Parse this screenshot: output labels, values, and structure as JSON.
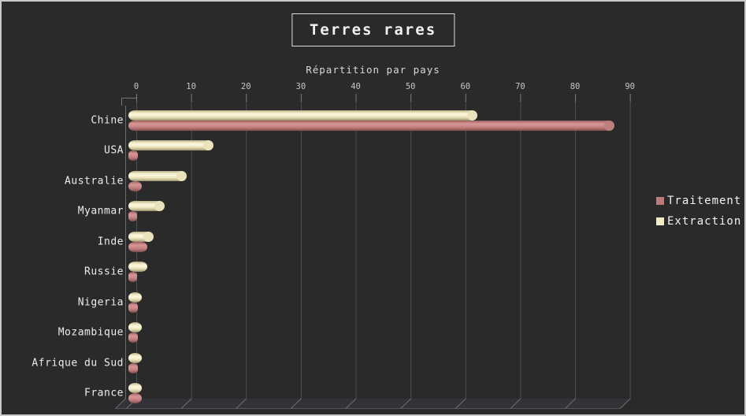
{
  "window": {
    "background_color": "#2a2a2a",
    "border_color": "#c9c9c9"
  },
  "chart": {
    "title": "Terres rares",
    "subtitle": "Répartition par pays",
    "legend": [
      {
        "label": "Traitement",
        "color": "#bc7b7b"
      },
      {
        "label": "Extraction",
        "color": "#f2ecc6"
      }
    ]
  },
  "chart_data": {
    "type": "bar",
    "orientation": "horizontal",
    "style": "3d-cylinder",
    "title": "Terres rares",
    "subtitle": "Répartition par pays",
    "categories": [
      "Chine",
      "USA",
      "Australie",
      "Myanmar",
      "Inde",
      "Russie",
      "Nigeria",
      "Mozambique",
      "Afrique du Sud",
      "France"
    ],
    "series": [
      {
        "name": "Traitement",
        "color": "#bc7b7b",
        "values": [
          87,
          0.3,
          1,
          0.2,
          2,
          0.2,
          0.3,
          0.3,
          0.3,
          1
        ]
      },
      {
        "name": "Extraction",
        "color": "#f2ecc6",
        "values": [
          62,
          14,
          9,
          5,
          3,
          2,
          1,
          1,
          1,
          1
        ]
      }
    ],
    "xlabel": "",
    "ylabel": "",
    "x_ticks": [
      0,
      10,
      20,
      30,
      40,
      50,
      60,
      70,
      80,
      90
    ],
    "xlim": [
      0,
      90
    ],
    "grid": true,
    "grid_color": "#4e4e54",
    "legend_position": "right",
    "bar_order_per_category": [
      "Extraction",
      "Traitement"
    ]
  }
}
